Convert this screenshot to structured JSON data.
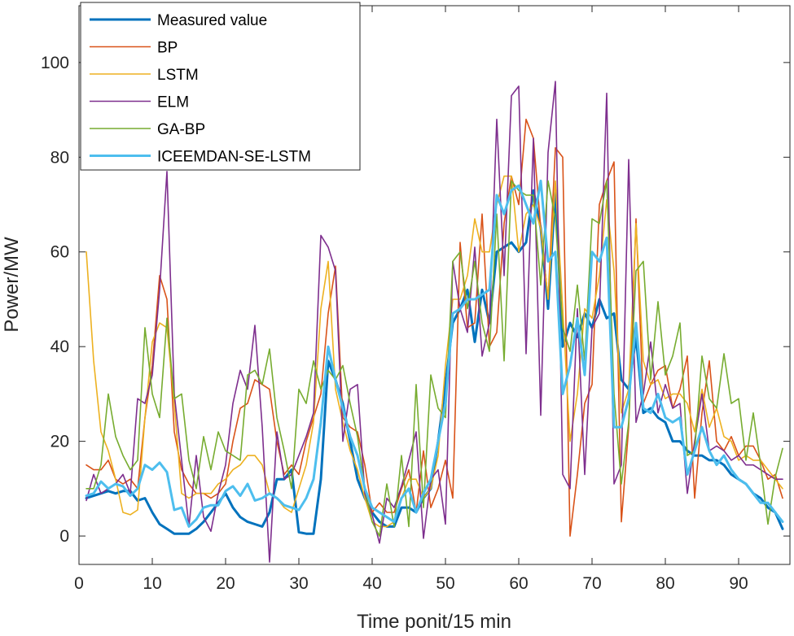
{
  "chart_data": {
    "type": "line",
    "xlabel": "Time ponit/15 min",
    "ylabel": "Power/MW",
    "xlim": [
      0,
      97
    ],
    "ylim": [
      -6,
      112
    ],
    "xticks": [
      0,
      10,
      20,
      30,
      40,
      50,
      60,
      70,
      80,
      90
    ],
    "yticks": [
      0,
      20,
      40,
      60,
      80,
      100
    ],
    "grid": false,
    "legend_position": "top-left",
    "x": [
      1,
      2,
      3,
      4,
      5,
      6,
      7,
      8,
      9,
      10,
      11,
      12,
      13,
      14,
      15,
      16,
      17,
      18,
      19,
      20,
      21,
      22,
      23,
      24,
      25,
      26,
      27,
      28,
      29,
      30,
      31,
      32,
      33,
      34,
      35,
      36,
      37,
      38,
      39,
      40,
      41,
      42,
      43,
      44,
      45,
      46,
      47,
      48,
      49,
      50,
      51,
      52,
      53,
      54,
      55,
      56,
      57,
      58,
      59,
      60,
      61,
      62,
      63,
      64,
      65,
      66,
      67,
      68,
      69,
      70,
      71,
      72,
      73,
      74,
      75,
      76,
      77,
      78,
      79,
      80,
      81,
      82,
      83,
      84,
      85,
      86,
      87,
      88,
      89,
      90,
      91,
      92,
      93,
      94,
      95,
      96
    ],
    "series": [
      {
        "name": "Measured value",
        "color": "#0072BD",
        "width": 3,
        "values": [
          8,
          8.5,
          9,
          9.5,
          9,
          9.5,
          9.5,
          7.5,
          8,
          5,
          2.5,
          1.5,
          0.5,
          0.5,
          0.5,
          1.5,
          3,
          5,
          7,
          9,
          6,
          4,
          3,
          2.5,
          2,
          5,
          12,
          12,
          14,
          0.8,
          0.5,
          0.5,
          12,
          37,
          33,
          28,
          20,
          12,
          8,
          5,
          3,
          2,
          2,
          6,
          6,
          5,
          8,
          10,
          20,
          32,
          45,
          48,
          52,
          41,
          52,
          45,
          60,
          61,
          62,
          60,
          62,
          73,
          65,
          48,
          73,
          40,
          45,
          42,
          47,
          44,
          50,
          46,
          47,
          33,
          31,
          42,
          26,
          27,
          25,
          24,
          20,
          20,
          18,
          17,
          17,
          16,
          16,
          15,
          13,
          12,
          11,
          9,
          8,
          6,
          5,
          1.5
        ]
      },
      {
        "name": "BP",
        "color": "#D95319",
        "width": 1.6,
        "values": [
          15,
          14,
          14,
          16,
          12,
          11,
          12,
          10,
          25,
          36,
          55,
          50,
          22,
          14,
          11,
          9,
          9,
          8,
          9,
          11,
          20,
          27,
          28,
          33,
          32,
          31,
          20,
          13,
          15,
          13,
          20,
          25,
          30,
          47,
          57,
          25,
          23,
          22,
          15,
          5,
          7,
          5,
          5,
          10,
          14,
          5,
          18,
          6,
          10,
          16,
          8,
          62,
          44,
          45,
          68,
          40,
          43,
          66,
          76,
          70,
          88,
          84,
          65,
          50,
          82,
          80,
          0,
          13,
          28,
          32,
          70,
          75,
          79,
          3,
          23,
          67,
          28,
          32,
          35,
          36,
          27,
          31,
          38,
          8,
          26,
          37,
          20,
          18,
          21,
          17,
          19,
          19,
          16,
          12,
          13,
          8
        ]
      },
      {
        "name": "LSTM",
        "color": "#EDB120",
        "width": 1.6,
        "values": [
          60,
          37,
          22,
          18,
          12,
          5,
          4.5,
          5.5,
          25,
          41,
          45,
          44,
          28,
          9,
          8,
          9,
          9,
          9,
          11,
          12,
          14,
          15,
          17,
          17,
          15,
          9,
          8,
          6,
          5,
          10,
          15,
          24,
          48,
          58,
          31,
          24,
          18,
          14,
          8,
          3,
          2,
          2,
          3,
          8,
          12,
          12,
          8,
          10,
          17,
          36,
          50,
          50,
          55,
          67,
          60,
          60,
          70,
          76,
          76,
          60,
          68,
          70,
          65,
          50,
          75,
          48,
          20,
          30,
          48,
          46,
          55,
          71,
          56,
          26,
          31,
          66,
          37,
          32,
          33,
          29,
          30,
          30,
          28,
          22,
          31,
          23,
          27,
          21,
          20,
          16,
          17,
          16,
          16,
          14,
          12,
          10
        ]
      },
      {
        "name": "ELM",
        "color": "#7E2F8E",
        "width": 1.6,
        "values": [
          7.5,
          13,
          9,
          10,
          11,
          13,
          9,
          29,
          28,
          34,
          52,
          77,
          30,
          16,
          2,
          17,
          4,
          1,
          9,
          15,
          28,
          35,
          31,
          44.5,
          23,
          -5.5,
          22,
          12,
          13,
          17,
          21,
          26,
          63.5,
          61,
          56,
          20,
          31,
          32,
          9,
          4.5,
          -1.5,
          8,
          6,
          10.5,
          16,
          22,
          -0.5,
          12,
          14,
          2.5,
          58,
          48,
          43,
          61,
          38,
          45,
          88,
          55,
          93,
          95,
          38.5,
          84,
          25.5,
          81,
          96,
          13,
          10,
          48,
          13,
          44,
          47,
          93.5,
          11,
          15,
          79.5,
          24,
          30,
          41,
          26,
          32,
          27,
          28,
          9,
          20,
          30,
          18,
          19,
          18,
          16,
          17,
          15,
          15,
          14,
          13,
          12,
          12
        ]
      },
      {
        "name": "GA-BP",
        "color": "#77AC30",
        "width": 1.6,
        "values": [
          10,
          10,
          15,
          30,
          21,
          17,
          14,
          16,
          44,
          30,
          25,
          46,
          29,
          30,
          16,
          10,
          21,
          14,
          22,
          18,
          17,
          16,
          34,
          35,
          32,
          39.5,
          25,
          18,
          10,
          31,
          28,
          37,
          31,
          35,
          33,
          36,
          28,
          21,
          10,
          3,
          0,
          11,
          2,
          17,
          2,
          32,
          6,
          34,
          27,
          25,
          58,
          60,
          48,
          58,
          45,
          39,
          68,
          37,
          75,
          73,
          72,
          72,
          53,
          75,
          67,
          44,
          39,
          53,
          37,
          67,
          66,
          75,
          30,
          11,
          24,
          56,
          58,
          33,
          49.5,
          34,
          38,
          45,
          17,
          18,
          38,
          29,
          27,
          38.5,
          28,
          29,
          16,
          26,
          15,
          2.5,
          12.5,
          18.5
        ]
      },
      {
        "name": "ICEEMDAN-SE-LSTM",
        "color": "#4DBEEE",
        "width": 3,
        "values": [
          8.5,
          9,
          11.5,
          10,
          11,
          10.5,
          8.5,
          10,
          15,
          14,
          15.5,
          13.5,
          5.5,
          6,
          2,
          3.5,
          6,
          6.5,
          6.5,
          9.5,
          10.5,
          8.5,
          11,
          7.5,
          8,
          9,
          8,
          6.5,
          6,
          5.5,
          8,
          12,
          24,
          40,
          33,
          27,
          21,
          17,
          10,
          6,
          5,
          4,
          3,
          8,
          10,
          5,
          9,
          12,
          20,
          28,
          47,
          48,
          50,
          50,
          51,
          52,
          72,
          68,
          73,
          74,
          70,
          66,
          75,
          58,
          60,
          30,
          36,
          46,
          34,
          60,
          58,
          63,
          23,
          23,
          29,
          45,
          27,
          26,
          30,
          25,
          24,
          25,
          13,
          18,
          23,
          18,
          15,
          17,
          14,
          12,
          11,
          9,
          7,
          7,
          5,
          3
        ]
      }
    ]
  }
}
